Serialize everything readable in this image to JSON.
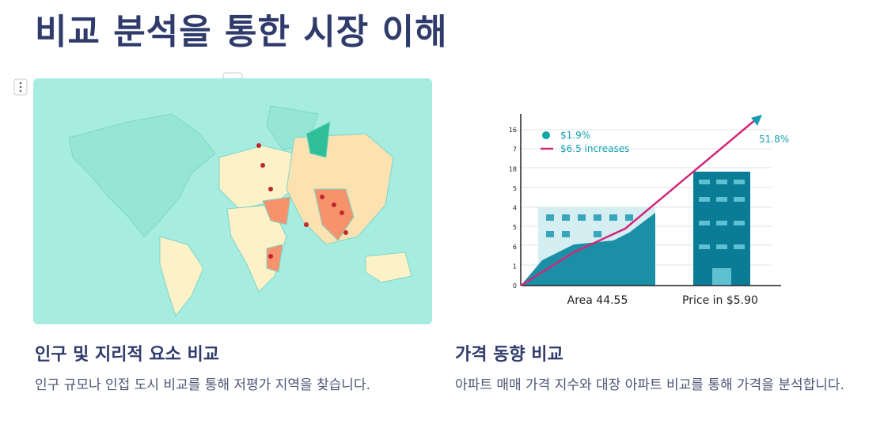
{
  "title": "비교 분석을 통한 시장 이해",
  "cards": [
    {
      "heading": "인구 및 지리적 요소 비교",
      "description": "인구 규모나 인접 도시 비교를 통해 저평가 지역을 찾습니다."
    },
    {
      "heading": "가격 동향 비교",
      "description": "아파트 매매 가격 지수와 대장 아파트 비교를 통해 가격을 분석합니다.",
      "image": {
        "y_axis_labels": [
          "16",
          "7",
          "18",
          "5",
          "4",
          "5",
          "6",
          "1",
          "0"
        ],
        "legend": [
          "$1.9%",
          "$6.5 increases"
        ],
        "annotation": "51.8%",
        "x_labels": [
          "Area 44.55",
          "Price in $5.90"
        ]
      }
    }
  ]
}
